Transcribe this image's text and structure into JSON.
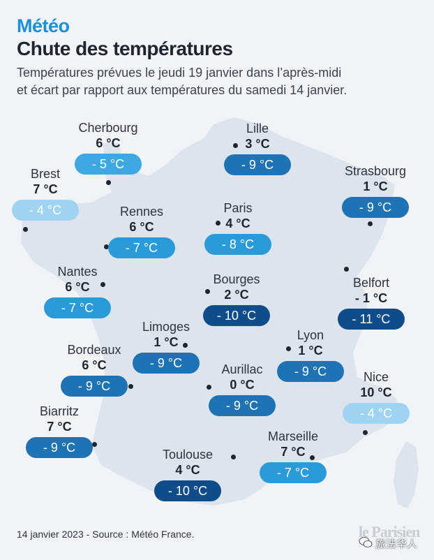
{
  "header": {
    "kicker": "Météo",
    "title": "Chute des températures",
    "subtitle_lines": [
      "Températures prévues le jeudi 19 janvier dans l’après-midi",
      "et écart par rapport aux températures du samedi 14 janvier."
    ]
  },
  "colors": {
    "background": "#f1f3f6",
    "land": "#dde4ec",
    "kicker": "#1c8fd6",
    "pill_scale": {
      "-4": "#9ed3f1",
      "-5": "#3fa7e2",
      "-7": "#2a9ad8",
      "-8": "#2a9ad8",
      "-9": "#1d73b3",
      "-10": "#0f4d8a",
      "-11": "#0f4d8a"
    }
  },
  "cities": [
    {
      "id": "cherbourg",
      "name": "Cherbourg",
      "temp": "6 °C",
      "delta": "- 5 °C",
      "delta_value": -5
    },
    {
      "id": "lille",
      "name": "Lille",
      "temp": "3 °C",
      "delta": "- 9 °C",
      "delta_value": -9
    },
    {
      "id": "brest",
      "name": "Brest",
      "temp": "7 °C",
      "delta": "- 4 °C",
      "delta_value": -4
    },
    {
      "id": "strasbourg",
      "name": "Strasbourg",
      "temp": "1 °C",
      "delta": "- 9 °C",
      "delta_value": -9
    },
    {
      "id": "rennes",
      "name": "Rennes",
      "temp": "6 °C",
      "delta": "- 7 °C",
      "delta_value": -7
    },
    {
      "id": "paris",
      "name": "Paris",
      "temp": "4 °C",
      "delta": "- 8 °C",
      "delta_value": -8
    },
    {
      "id": "nantes",
      "name": "Nantes",
      "temp": "6 °C",
      "delta": "- 7 °C",
      "delta_value": -7
    },
    {
      "id": "bourges",
      "name": "Bourges",
      "temp": "2 °C",
      "delta": "- 10 °C",
      "delta_value": -10
    },
    {
      "id": "belfort",
      "name": "Belfort",
      "temp": "- 1 °C",
      "delta": "- 11 °C",
      "delta_value": -11
    },
    {
      "id": "limoges",
      "name": "Limoges",
      "temp": "1 °C",
      "delta": "- 9 °C",
      "delta_value": -9
    },
    {
      "id": "lyon",
      "name": "Lyon",
      "temp": "1 °C",
      "delta": "- 9 °C",
      "delta_value": -9
    },
    {
      "id": "bordeaux",
      "name": "Bordeaux",
      "temp": "6 °C",
      "delta": "- 9 °C",
      "delta_value": -9
    },
    {
      "id": "aurillac",
      "name": "Aurillac",
      "temp": "0 °C",
      "delta": "- 9 °C",
      "delta_value": -9
    },
    {
      "id": "nice",
      "name": "Nice",
      "temp": "10 °C",
      "delta": "- 4 °C",
      "delta_value": -4
    },
    {
      "id": "biarritz",
      "name": "Biarritz",
      "temp": "7 °C",
      "delta": "- 9 °C",
      "delta_value": -9
    },
    {
      "id": "marseille",
      "name": "Marseille",
      "temp": "7 °C",
      "delta": "- 7 °C",
      "delta_value": -7
    },
    {
      "id": "toulouse",
      "name": "Toulouse",
      "temp": "4 °C",
      "delta": "- 10 °C",
      "delta_value": -10
    }
  ],
  "footer": {
    "source": "14 janvier 2023 - Source : Météo France.",
    "logo": "le Parisien",
    "watermark": "旅法华人"
  }
}
